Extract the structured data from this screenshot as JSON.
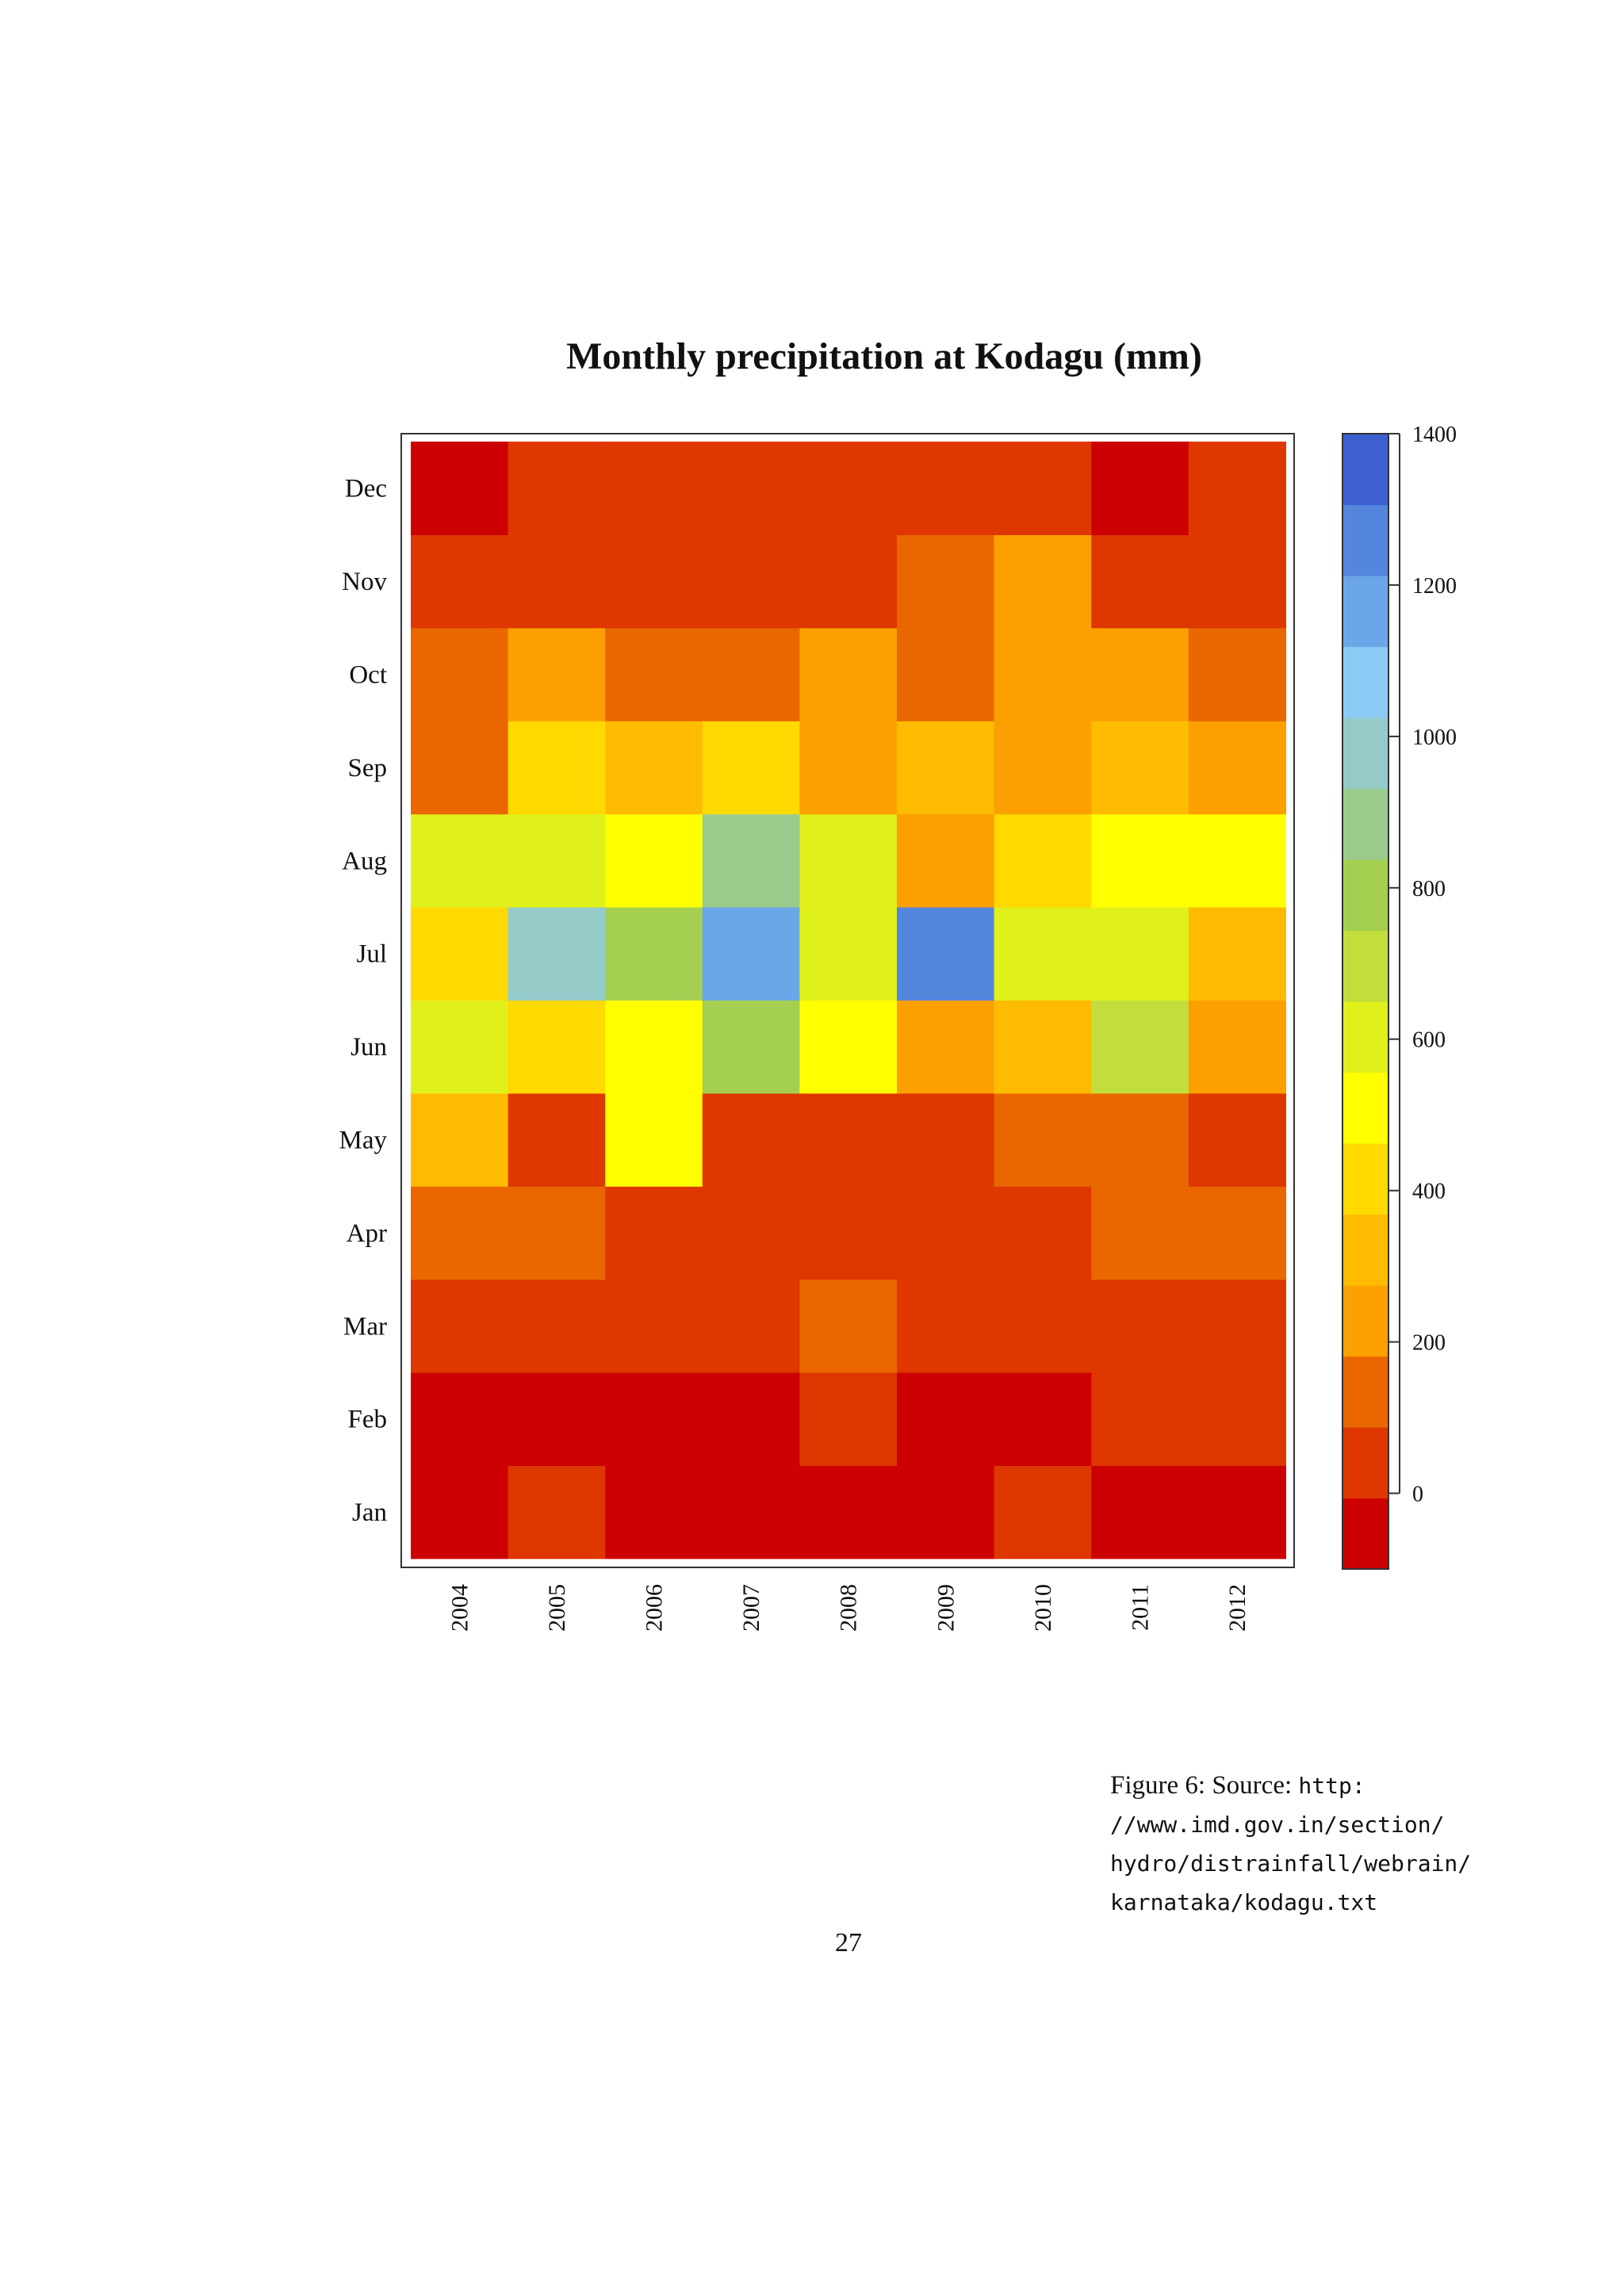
{
  "caption": {
    "label": "Figure 6: Source:",
    "url_lines": [
      "http:",
      "//www.imd.gov.in/section/",
      "hydro/distrainfall/webrain/",
      "karnataka/kodagu.txt"
    ]
  },
  "page_number": "27",
  "chart_data": {
    "type": "heatmap",
    "title": "Monthly precipitation at Kodagu (mm)",
    "xlabel": "",
    "ylabel": "",
    "x": [
      "2004",
      "2005",
      "2006",
      "2007",
      "2008",
      "2009",
      "2010",
      "2011",
      "2012"
    ],
    "y": [
      "Jan",
      "Feb",
      "Mar",
      "Apr",
      "May",
      "Jun",
      "Jul",
      "Aug",
      "Sep",
      "Oct",
      "Nov",
      "Dec"
    ],
    "values": [
      [
        -50,
        50,
        -50,
        -50,
        -50,
        -50,
        50,
        -50,
        -50
      ],
      [
        -50,
        -50,
        -50,
        -50,
        50,
        -50,
        -50,
        50,
        50
      ],
      [
        50,
        50,
        50,
        50,
        150,
        50,
        50,
        50,
        50
      ],
      [
        150,
        150,
        50,
        50,
        50,
        50,
        50,
        150,
        150
      ],
      [
        350,
        50,
        550,
        50,
        50,
        50,
        150,
        150,
        50
      ],
      [
        650,
        450,
        550,
        850,
        550,
        250,
        350,
        750,
        250
      ],
      [
        450,
        1050,
        850,
        1250,
        650,
        1350,
        650,
        650,
        350
      ],
      [
        650,
        650,
        550,
        950,
        650,
        250,
        450,
        550,
        550
      ],
      [
        150,
        450,
        350,
        450,
        250,
        350,
        250,
        350,
        250
      ],
      [
        150,
        250,
        150,
        150,
        250,
        150,
        250,
        250,
        150
      ],
      [
        50,
        50,
        50,
        50,
        50,
        150,
        250,
        50,
        50
      ],
      [
        -50,
        50,
        50,
        50,
        50,
        50,
        50,
        -50,
        50
      ]
    ],
    "colorbar": {
      "min": -100,
      "max": 1400,
      "step": 100,
      "ticks": [
        0,
        200,
        400,
        600,
        800,
        1000,
        1200,
        1400
      ],
      "colors": [
        "#cc0000",
        "#de3700",
        "#ea6700",
        "#fba000",
        "#ffbb00",
        "#ffd900",
        "#ffff00",
        "#e0f01a",
        "#c3dd3c",
        "#a4cf50",
        "#9acb8c",
        "#94cbc8",
        "#8ccbf5",
        "#6ba6e8",
        "#5486de",
        "#3d5fd0"
      ]
    }
  }
}
